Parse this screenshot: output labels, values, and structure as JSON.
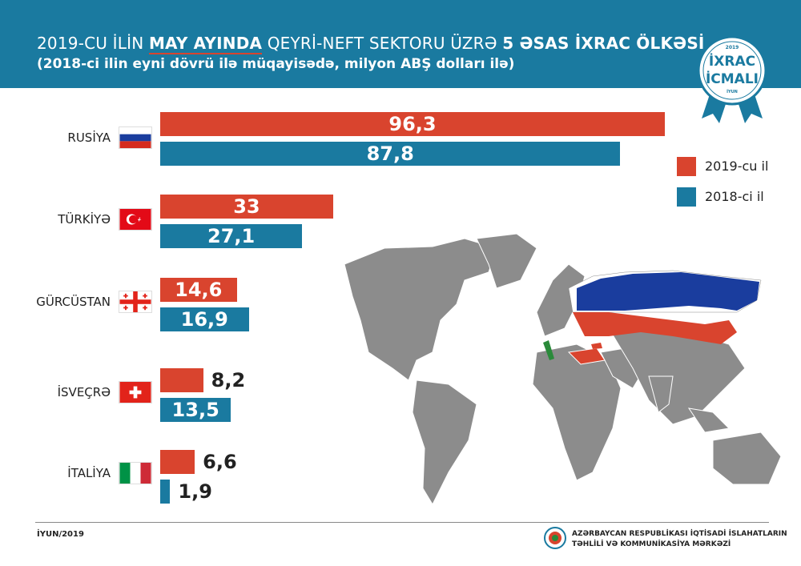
{
  "header": {
    "title_prefix": "2019-CU İLİN",
    "title_month": "MAY AYINDA",
    "title_mid": "QEYRİ-NEFT SEKTORU ÜZRƏ",
    "title_bold": "5 ƏSAS İXRAC ÖLKƏSİ",
    "subtitle": "(2018-ci ilin eyni dövrü ilə müqayisədə, milyon ABŞ dolları ilə)"
  },
  "badge": {
    "year": "2019",
    "line1": "İXRAC",
    "line2": "İCMALI",
    "month": "İYUN"
  },
  "colors": {
    "series_2019": "#d9442e",
    "series_2018": "#1a7aa0",
    "header": "#1a7aa0"
  },
  "chart_data": {
    "type": "bar",
    "orientation": "horizontal",
    "categories": [
      "RUSİYA",
      "TÜRKİYƏ",
      "GÜRCÜSTAN",
      "İSVEÇRƏ",
      "İTALİYA"
    ],
    "series": [
      {
        "name": "2019-cu il",
        "values": [
          96.3,
          33,
          14.6,
          8.2,
          6.6
        ],
        "labels": [
          "96,3",
          "33",
          "14,6",
          "8,2",
          "6,6"
        ]
      },
      {
        "name": "2018-ci il",
        "values": [
          87.8,
          27.1,
          16.9,
          13.5,
          1.9
        ],
        "labels": [
          "87,8",
          "27,1",
          "16,9",
          "13,5",
          "1,9"
        ]
      }
    ],
    "legend_position": "right",
    "grid": false
  },
  "footer": {
    "date": "İYUN/2019",
    "org_line1": "AZƏRBAYCAN RESPUBLİKASI İQTİSADİ İSLAHATLARIN",
    "org_line2": "TƏHLİLİ VƏ KOMMUNİKASİYA MƏRKƏZİ"
  }
}
